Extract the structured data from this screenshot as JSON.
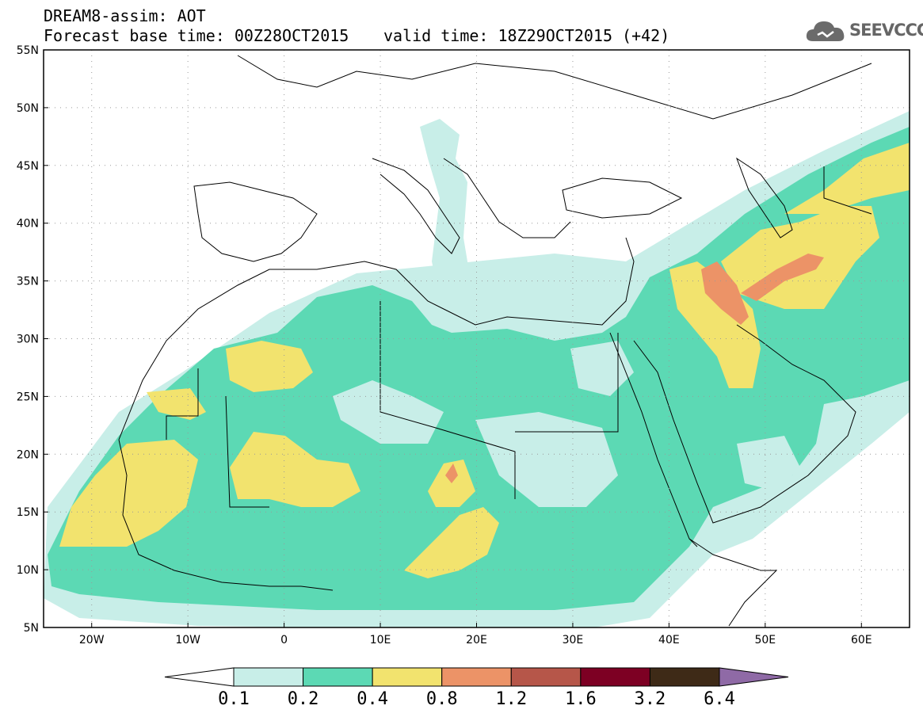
{
  "header": {
    "line1": "DREAM8-assim: AOT",
    "base_time": "Forecast base time: 00Z28OCT2015",
    "valid_time": "valid time: 18Z29OCT2015 (+42)"
  },
  "logo": {
    "text": "SEEVCCC",
    "icon": "cloud-icon"
  },
  "map": {
    "lon_ticks": [
      "20W",
      "10W",
      "0",
      "10E",
      "20E",
      "30E",
      "40E",
      "50E",
      "60E"
    ],
    "lat_ticks": [
      "55N",
      "50N",
      "45N",
      "40N",
      "35N",
      "30N",
      "25N",
      "20N",
      "15N",
      "10N",
      "5N"
    ],
    "lon_range": [
      -25,
      65
    ],
    "lat_range": [
      5,
      55
    ],
    "grid": "dotted"
  },
  "colorbar": {
    "labels": [
      "0.1",
      "0.2",
      "0.4",
      "0.8",
      "1.2",
      "1.6",
      "3.2",
      "6.4"
    ],
    "colors": [
      "#ffffff",
      "#c8eee8",
      "#5cd9b4",
      "#f2e36e",
      "#ec9367",
      "#b65649",
      "#7d0023",
      "#3e2a17",
      "#8f6aa6"
    ]
  }
}
